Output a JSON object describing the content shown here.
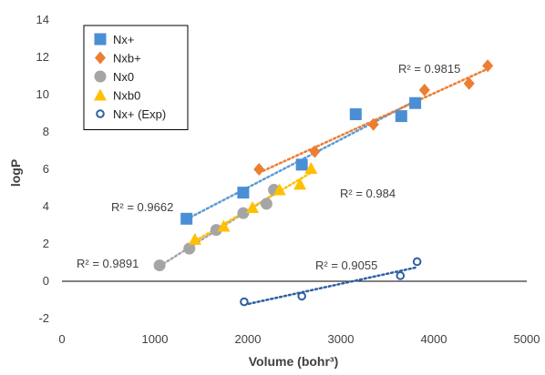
{
  "chart_data": {
    "type": "scatter",
    "xlabel": "Volume (bohr³)",
    "ylabel": "logP",
    "xlim": [
      0,
      5000
    ],
    "ylim": [
      -2,
      14
    ],
    "x_ticks": [
      0,
      1000,
      2000,
      3000,
      4000,
      5000
    ],
    "y_ticks": [
      -2,
      0,
      2,
      4,
      6,
      8,
      10,
      12,
      14
    ],
    "grid": false,
    "legend_position": "top-left",
    "series": [
      {
        "name": "Nx+",
        "marker": "square",
        "filled": true,
        "color": "#4a8fd4",
        "trend_color": "#5b9bd5",
        "points": [
          [
            1340,
            3.35
          ],
          [
            1950,
            4.75
          ],
          [
            2580,
            6.25
          ],
          [
            3160,
            8.95
          ],
          [
            3650,
            8.85
          ],
          [
            3800,
            9.55
          ]
        ],
        "trendline": {
          "x_range": [
            1340,
            3800
          ],
          "r2_text": "R² = 0.9662"
        }
      },
      {
        "name": "Nxb+",
        "marker": "diamond",
        "filled": true,
        "color": "#ed7d31",
        "trend_color": "#ed7d31",
        "points": [
          [
            2120,
            6.0
          ],
          [
            2720,
            6.95
          ],
          [
            3350,
            8.4
          ],
          [
            3900,
            10.25
          ],
          [
            4380,
            10.6
          ],
          [
            4580,
            11.55
          ]
        ],
        "trendline": {
          "x_range": [
            2120,
            4580
          ],
          "r2_text": "R² = 0.9815"
        }
      },
      {
        "name": "Nx0",
        "marker": "circle",
        "filled": true,
        "color": "#a5a5a5",
        "trend_color": "#a5a5a5",
        "points": [
          [
            1050,
            0.85
          ],
          [
            1370,
            1.75
          ],
          [
            1660,
            2.75
          ],
          [
            1950,
            3.65
          ],
          [
            2200,
            4.15
          ],
          [
            2280,
            4.9
          ]
        ],
        "trendline": {
          "x_range": [
            1050,
            2280
          ],
          "r2_text": "R² = 0.9891"
        }
      },
      {
        "name": "Nxb0",
        "marker": "triangle",
        "filled": true,
        "color": "#ffc000",
        "trend_color": "#ffc000",
        "points": [
          [
            1430,
            2.25
          ],
          [
            1740,
            2.95
          ],
          [
            2050,
            3.95
          ],
          [
            2340,
            4.9
          ],
          [
            2560,
            5.2
          ],
          [
            2680,
            6.05
          ]
        ],
        "trendline": {
          "x_range": [
            1430,
            2680
          ],
          "r2_text": "R² = 0.984"
        }
      },
      {
        "name": "Nx+ (Exp)",
        "marker": "circle",
        "filled": false,
        "color": "#2e5fa3",
        "trend_color": "#2e5fa3",
        "points": [
          [
            1960,
            -1.1
          ],
          [
            2580,
            -0.8
          ],
          [
            3640,
            0.3
          ],
          [
            3820,
            1.05
          ]
        ],
        "trendline": {
          "x_range": [
            1960,
            3820
          ],
          "r2_text": "R² = 0.9055"
        }
      }
    ]
  }
}
